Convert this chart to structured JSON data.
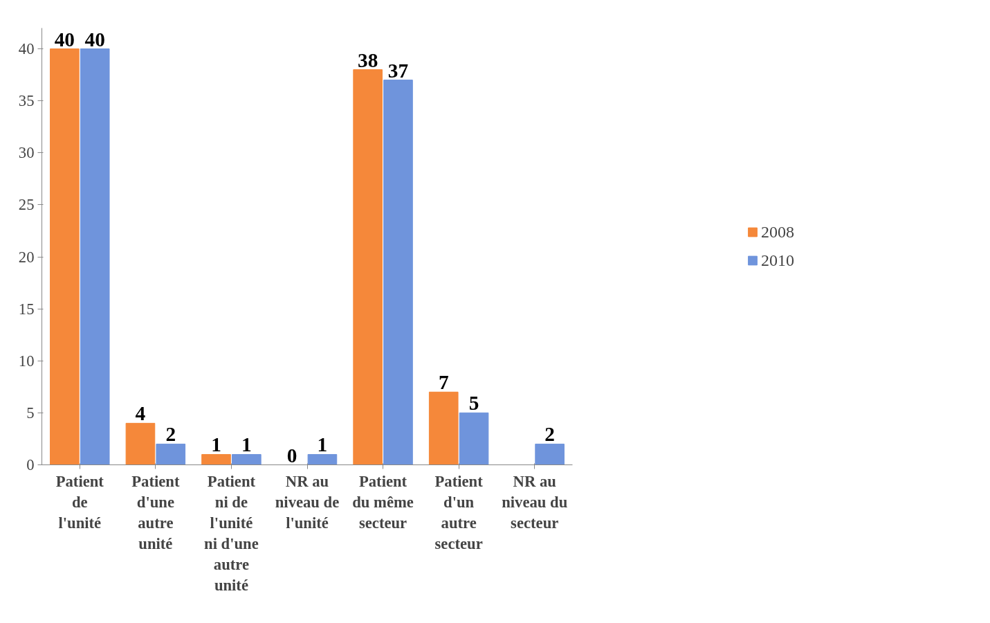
{
  "chart_data": {
    "type": "bar",
    "categories": [
      "Patient de l'unité",
      "Patient d'une autre unité",
      "Patient ni de l'unité ni d'une autre unité",
      "NR au niveau de l'unité",
      "Patient du même secteur",
      "Patient d'un autre secteur",
      "NR au niveau du secteur"
    ],
    "series": [
      {
        "name": "2008",
        "color": "#f5883a",
        "values": [
          40,
          4,
          1,
          0,
          38,
          7,
          null
        ]
      },
      {
        "name": "2010",
        "color": "#6f94dc",
        "values": [
          40,
          2,
          1,
          1,
          37,
          5,
          2
        ]
      }
    ],
    "ylim": [
      0,
      42
    ],
    "yticks": [
      0,
      5,
      10,
      15,
      20,
      25,
      30,
      35,
      40
    ],
    "data_labels": true,
    "grid": false,
    "legend": "right"
  }
}
